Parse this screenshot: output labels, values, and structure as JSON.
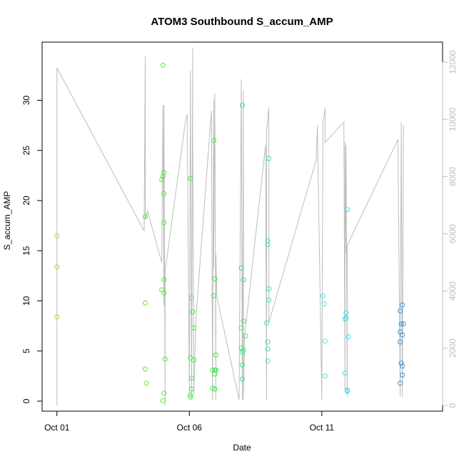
{
  "chart_data": {
    "type": "scatter",
    "title": "ATOM3 Southbound S_accum_AMP",
    "xlabel": "Date",
    "ylabel": "S_accum_AMP",
    "x_domain": [
      "2023-10-01",
      "2023-10-15"
    ],
    "x_ticks": [
      {
        "date": "2023-10-01",
        "label": "Oct 01"
      },
      {
        "date": "2023-10-06",
        "label": "Oct 06"
      },
      {
        "date": "2023-10-11",
        "label": "Oct 11"
      }
    ],
    "ylim": [
      -1,
      35.8
    ],
    "y_ticks": [
      0,
      5,
      10,
      15,
      20,
      25,
      30
    ],
    "y2lim": [
      -200,
      12700
    ],
    "y2_ticks": [
      0,
      2000,
      4000,
      6000,
      8000,
      10000,
      12000
    ],
    "grid": false,
    "points": [
      {
        "x": "2023-10-01 00:00",
        "y": 16.5,
        "color": "#9be639"
      },
      {
        "x": "2023-10-01 00:00",
        "y": 13.4,
        "color": "#9be639"
      },
      {
        "x": "2023-10-01 00:00",
        "y": 8.4,
        "color": "#9be639"
      },
      {
        "x": "2023-10-04 08:00",
        "y": 18.4,
        "color": "#66e833"
      },
      {
        "x": "2023-10-04 08:00",
        "y": 9.8,
        "color": "#66e833"
      },
      {
        "x": "2023-10-04 08:00",
        "y": 3.2,
        "color": "#66e833"
      },
      {
        "x": "2023-10-04 09:00",
        "y": 1.8,
        "color": "#66e833"
      },
      {
        "x": "2023-10-05 00:00",
        "y": 33.5,
        "color": "#55e83a"
      },
      {
        "x": "2023-10-04 23:00",
        "y": 22.1,
        "color": "#55e83a"
      },
      {
        "x": "2023-10-05 00:00",
        "y": 22.4,
        "color": "#55e83a"
      },
      {
        "x": "2023-10-05 01:00",
        "y": 22.8,
        "color": "#55e83a"
      },
      {
        "x": "2023-10-05 01:00",
        "y": 20.7,
        "color": "#55e83a"
      },
      {
        "x": "2023-10-05 01:00",
        "y": 17.8,
        "color": "#55e83a"
      },
      {
        "x": "2023-10-05 01:00",
        "y": 12.1,
        "color": "#55e83a"
      },
      {
        "x": "2023-10-04 23:00",
        "y": 11.1,
        "color": "#55e83a"
      },
      {
        "x": "2023-10-05 01:00",
        "y": 10.8,
        "color": "#55e83a"
      },
      {
        "x": "2023-10-05 02:00",
        "y": 4.2,
        "color": "#55e83a"
      },
      {
        "x": "2023-10-05 01:00",
        "y": 0.8,
        "color": "#55e83a"
      },
      {
        "x": "2023-10-05 00:00",
        "y": 0.05,
        "color": "#55e83a"
      },
      {
        "x": "2023-10-06 01:00",
        "y": 22.2,
        "color": "#44e846"
      },
      {
        "x": "2023-10-06 02:00",
        "y": 10.3,
        "color": "#44e846"
      },
      {
        "x": "2023-10-06 03:00",
        "y": 8.9,
        "color": "#44e846"
      },
      {
        "x": "2023-10-06 04:00",
        "y": 7.3,
        "color": "#44e846"
      },
      {
        "x": "2023-10-06 01:00",
        "y": 4.3,
        "color": "#44e846"
      },
      {
        "x": "2023-10-06 04:00",
        "y": 4.1,
        "color": "#44e846"
      },
      {
        "x": "2023-10-06 02:00",
        "y": 2.3,
        "color": "#44e846"
      },
      {
        "x": "2023-10-06 02:00",
        "y": 1.2,
        "color": "#44e846"
      },
      {
        "x": "2023-10-06 01:00",
        "y": 0.6,
        "color": "#44e846"
      },
      {
        "x": "2023-10-06 01:00",
        "y": 0.4,
        "color": "#44e846"
      },
      {
        "x": "2023-10-06 22:00",
        "y": 26.0,
        "color": "#3ee655"
      },
      {
        "x": "2023-10-06 23:00",
        "y": 12.2,
        "color": "#3ee655"
      },
      {
        "x": "2023-10-06 22:00",
        "y": 10.5,
        "color": "#3ee655"
      },
      {
        "x": "2023-10-07 00:00",
        "y": 4.6,
        "color": "#3ee655"
      },
      {
        "x": "2023-10-06 21:00",
        "y": 3.1,
        "color": "#3ee655"
      },
      {
        "x": "2023-10-06 23:00",
        "y": 3.1,
        "color": "#3ee655"
      },
      {
        "x": "2023-10-07 00:00",
        "y": 3.1,
        "color": "#3ee655"
      },
      {
        "x": "2023-10-06 23:00",
        "y": 2.7,
        "color": "#3ee655"
      },
      {
        "x": "2023-10-06 21:00",
        "y": 1.3,
        "color": "#3ee655"
      },
      {
        "x": "2023-10-06 23:00",
        "y": 1.2,
        "color": "#3ee655"
      },
      {
        "x": "2023-10-08 00:00",
        "y": 29.5,
        "color": "#3ee67f"
      },
      {
        "x": "2023-10-07 23:00",
        "y": 13.3,
        "color": "#3ee67f"
      },
      {
        "x": "2023-10-08 01:00",
        "y": 12.1,
        "color": "#3ee67f"
      },
      {
        "x": "2023-10-08 01:00",
        "y": 12.1,
        "color": "#3ee67f"
      },
      {
        "x": "2023-10-08 01:00",
        "y": 8.0,
        "color": "#3ee67f"
      },
      {
        "x": "2023-10-07 23:00",
        "y": 7.3,
        "color": "#3ee67f"
      },
      {
        "x": "2023-10-08 03:00",
        "y": 6.5,
        "color": "#3ee67f"
      },
      {
        "x": "2023-10-07 23:00",
        "y": 5.3,
        "color": "#3ee67f"
      },
      {
        "x": "2023-10-08 01:00",
        "y": 5.1,
        "color": "#3ee67f"
      },
      {
        "x": "2023-10-08 00:00",
        "y": 4.9,
        "color": "#3ee67f"
      },
      {
        "x": "2023-10-08 00:00",
        "y": 3.6,
        "color": "#3ee67f"
      },
      {
        "x": "2023-10-08 00:00",
        "y": 2.2,
        "color": "#3ee67f"
      },
      {
        "x": "2023-10-09 00:00",
        "y": 24.2,
        "color": "#3ee6a0"
      },
      {
        "x": "2023-10-08 23:00",
        "y": 16.0,
        "color": "#3ee6a0"
      },
      {
        "x": "2023-10-08 23:00",
        "y": 15.6,
        "color": "#3ee6a0"
      },
      {
        "x": "2023-10-09 00:00",
        "y": 11.2,
        "color": "#3ee6a0"
      },
      {
        "x": "2023-10-09 00:00",
        "y": 10.1,
        "color": "#3ee6a0"
      },
      {
        "x": "2023-10-08 22:00",
        "y": 7.8,
        "color": "#3ee6a0"
      },
      {
        "x": "2023-10-08 23:00",
        "y": 5.9,
        "color": "#3ee6a0"
      },
      {
        "x": "2023-10-08 23:00",
        "y": 5.2,
        "color": "#3ee6a0"
      },
      {
        "x": "2023-10-08 23:00",
        "y": 4.0,
        "color": "#3ee6a0"
      },
      {
        "x": "2023-10-11 01:00",
        "y": 10.5,
        "color": "#3ee6e6"
      },
      {
        "x": "2023-10-11 02:00",
        "y": 9.7,
        "color": "#3ee6e6"
      },
      {
        "x": "2023-10-11 03:00",
        "y": 6.0,
        "color": "#3ee6e6"
      },
      {
        "x": "2023-10-11 03:00",
        "y": 2.5,
        "color": "#3ee6e6"
      },
      {
        "x": "2023-10-11 23:00",
        "y": 19.1,
        "color": "#33e0ee"
      },
      {
        "x": "2023-10-11 22:00",
        "y": 8.8,
        "color": "#33e0ee"
      },
      {
        "x": "2023-10-11 21:00",
        "y": 8.2,
        "color": "#33e0ee"
      },
      {
        "x": "2023-10-11 22:00",
        "y": 8.3,
        "color": "#33e0ee"
      },
      {
        "x": "2023-10-12 00:00",
        "y": 6.4,
        "color": "#33e0ee"
      },
      {
        "x": "2023-10-11 21:00",
        "y": 2.8,
        "color": "#33e0ee"
      },
      {
        "x": "2023-10-11 23:00",
        "y": 1.1,
        "color": "#33e0ee"
      },
      {
        "x": "2023-10-11 23:00",
        "y": 1.0,
        "color": "#33e0ee"
      },
      {
        "x": "2023-10-13 23:00",
        "y": 9.0,
        "color": "#3399e6"
      },
      {
        "x": "2023-10-14 01:00",
        "y": 9.6,
        "color": "#3399e6"
      },
      {
        "x": "2023-10-14 00:00",
        "y": 7.7,
        "color": "#3399e6"
      },
      {
        "x": "2023-10-14 02:00",
        "y": 7.7,
        "color": "#3399e6"
      },
      {
        "x": "2023-10-13 23:00",
        "y": 6.9,
        "color": "#3399e6"
      },
      {
        "x": "2023-10-14 01:00",
        "y": 6.6,
        "color": "#3399e6"
      },
      {
        "x": "2023-10-13 23:00",
        "y": 5.9,
        "color": "#3399e6"
      },
      {
        "x": "2023-10-14 00:00",
        "y": 3.8,
        "color": "#3399e6"
      },
      {
        "x": "2023-10-14 01:00",
        "y": 3.5,
        "color": "#3399e6"
      },
      {
        "x": "2023-10-14 01:00",
        "y": 2.6,
        "color": "#3399e6"
      },
      {
        "x": "2023-10-13 23:00",
        "y": 1.8,
        "color": "#3399e6"
      }
    ],
    "line_color": "#bdbdbd",
    "line_y2": [
      [
        "2023-10-01 00:00",
        0
      ],
      [
        "2023-10-01 00:00",
        11800
      ],
      [
        "2023-10-04 07:00",
        6100
      ],
      [
        "2023-10-04 08:00",
        12200
      ],
      [
        "2023-10-04 08:00",
        6500
      ],
      [
        "2023-10-04 10:00",
        6800
      ],
      [
        "2023-10-04 23:00",
        5000
      ],
      [
        "2023-10-05 00:00",
        10500
      ],
      [
        "2023-10-05 01:00",
        3500
      ],
      [
        "2023-10-05 01:00",
        10500
      ],
      [
        "2023-10-05 02:00",
        0
      ],
      [
        "2023-10-05 02:00",
        4700
      ],
      [
        "2023-10-05 20:00",
        9800
      ],
      [
        "2023-10-05 22:00",
        10200
      ],
      [
        "2023-10-06 00:00",
        400
      ],
      [
        "2023-10-06 01:00",
        11700
      ],
      [
        "2023-10-06 02:00",
        200
      ],
      [
        "2023-10-06 03:00",
        12500
      ],
      [
        "2023-10-06 03:00",
        9900
      ],
      [
        "2023-10-06 04:00",
        400
      ],
      [
        "2023-10-06 06:00",
        3100
      ],
      [
        "2023-10-06 20:00",
        10300
      ],
      [
        "2023-10-06 21:00",
        200
      ],
      [
        "2023-10-06 22:00",
        10700
      ],
      [
        "2023-10-06 22:00",
        4800
      ],
      [
        "2023-10-06 23:00",
        10900
      ],
      [
        "2023-10-07 00:00",
        200
      ],
      [
        "2023-10-07 00:00",
        5300
      ],
      [
        "2023-10-07 01:00",
        3800
      ],
      [
        "2023-10-07 21:00",
        200
      ],
      [
        "2023-10-07 23:00",
        11400
      ],
      [
        "2023-10-08 00:00",
        200
      ],
      [
        "2023-10-08 01:00",
        11000
      ],
      [
        "2023-10-08 01:00",
        200
      ],
      [
        "2023-10-08 02:00",
        2400
      ],
      [
        "2023-10-08 21:00",
        9100
      ],
      [
        "2023-10-08 22:00",
        200
      ],
      [
        "2023-10-08 22:00",
        9600
      ],
      [
        "2023-10-09 00:00",
        10400
      ],
      [
        "2023-10-09 00:00",
        2900
      ],
      [
        "2023-10-10 19:00",
        8600
      ],
      [
        "2023-10-10 20:00",
        9800
      ],
      [
        "2023-10-11 00:00",
        200
      ],
      [
        "2023-10-11 01:00",
        9900
      ],
      [
        "2023-10-11 03:00",
        10400
      ],
      [
        "2023-10-11 03:00",
        9200
      ],
      [
        "2023-10-11 20:00",
        9900
      ],
      [
        "2023-10-11 21:00",
        500
      ],
      [
        "2023-10-11 21:00",
        9200
      ],
      [
        "2023-10-11 22:00",
        5300
      ],
      [
        "2023-10-11 22:00",
        9100
      ],
      [
        "2023-10-11 23:00",
        300
      ],
      [
        "2023-10-11 23:00",
        5600
      ],
      [
        "2023-10-13 21:00",
        9300
      ],
      [
        "2023-10-13 23:00",
        300
      ],
      [
        "2023-10-14 00:00",
        9900
      ],
      [
        "2023-10-14 01:00",
        300
      ],
      [
        "2023-10-14 02:00",
        9800
      ]
    ]
  }
}
